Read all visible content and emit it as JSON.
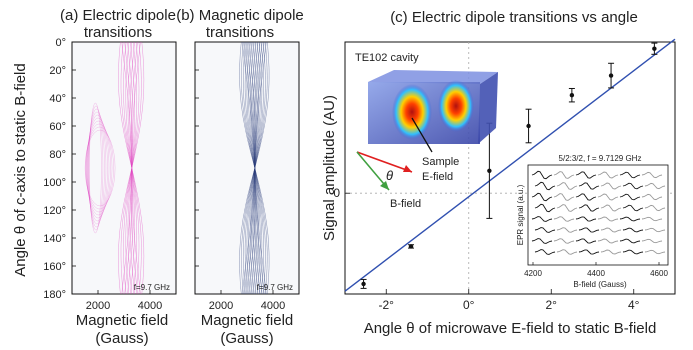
{
  "panels": {
    "a": {
      "title_line1": "(a) Electric dipole",
      "title_line2": "transitions",
      "annotation": "f=9.7 GHz",
      "xlabel_line1": "Magnetic field",
      "xlabel_line2": "(Gauss)"
    },
    "b": {
      "title_line1": "(b) Magnetic dipole",
      "title_line2": "transitions",
      "annotation": "f=9.7 GHz",
      "xlabel_line1": "Magnetic field",
      "xlabel_line2": "(Gauss)"
    },
    "c": {
      "title": "(c) Electric dipole transitions vs angle"
    }
  },
  "shared_ylabel": "Angle θ of c-axis to static B-field",
  "inset_cavity": {
    "title": "TE102 cavity",
    "sample_label_line1": "Sample",
    "sample_label_line2": "E-field",
    "theta_label": "θ",
    "bfield_label": "B-field"
  },
  "inset_epr": {
    "title": "5/2:3/2,  f = 9.7129 GHz",
    "ylabel": "EPR signal (a.u.)",
    "xlabel": "B-field (Gauss)",
    "x_ticks": [
      "4200",
      "4400",
      "4600"
    ]
  },
  "colors": {
    "electric": "#e040c0",
    "magnetic": "#283a78",
    "fit_line": "#3050b0",
    "points": "#111111"
  },
  "chart_data": [
    {
      "type": "line",
      "title": "(a) Electric dipole transitions",
      "xlabel": "Magnetic field (Gauss)",
      "ylabel": "Angle θ of c-axis to static B-field",
      "x_ticks": [
        "2000",
        "4000"
      ],
      "y_ticks": [
        "0°",
        "20°",
        "40°",
        "60°",
        "80°",
        "100°",
        "120°",
        "140°",
        "160°",
        "180°"
      ],
      "xlim": [
        1000,
        5000
      ],
      "ylim": [
        0,
        180
      ],
      "y_reversed": true
    },
    {
      "type": "line",
      "title": "(b) Magnetic dipole transitions",
      "xlabel": "Magnetic field (Gauss)",
      "x_ticks": [
        "2000",
        "4000"
      ],
      "xlim": [
        1000,
        5000
      ],
      "ylim": [
        0,
        180
      ],
      "y_reversed": true
    },
    {
      "type": "scatter",
      "title": "(c) Electric dipole transitions vs angle",
      "xlabel": "Angle θ of microwave E-field to static B-field",
      "ylabel": "Signal amplitude (AU)",
      "x_ticks": [
        "-2°",
        "0°",
        "2°",
        "4°"
      ],
      "y_ticks": [
        "0"
      ],
      "xlim": [
        -3.0,
        5.0
      ],
      "ylim": [
        -1.8,
        2.7
      ],
      "grid": "dotted zero lines",
      "points": [
        {
          "x": -2.55,
          "y": -1.62,
          "err": 0.08
        },
        {
          "x": -1.4,
          "y": -0.95,
          "err": 0.03
        },
        {
          "x": 0.5,
          "y": 0.4,
          "err": 0.85
        },
        {
          "x": 1.45,
          "y": 1.2,
          "err": 0.3
        },
        {
          "x": 2.5,
          "y": 1.75,
          "err": 0.12
        },
        {
          "x": 3.45,
          "y": 2.1,
          "err": 0.22
        },
        {
          "x": 4.5,
          "y": 2.58,
          "err": 0.1
        }
      ],
      "fit": {
        "x": [
          -3.0,
          5.0
        ],
        "y": [
          -1.75,
          2.75
        ]
      }
    }
  ]
}
